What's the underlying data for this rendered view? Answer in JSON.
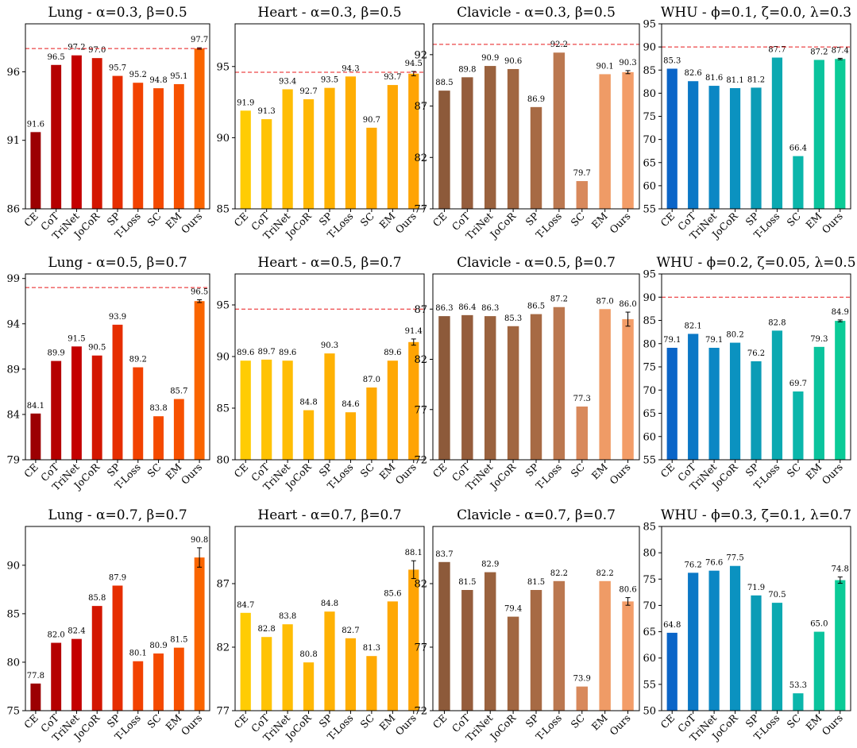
{
  "categories": [
    "CE",
    "CoT",
    "TriNet",
    "JoCoR",
    "SP",
    "T-Loss",
    "SC",
    "EM",
    "Ours"
  ],
  "chart_data": [
    {
      "type": "bar",
      "title": "Lung - α=0.3, β=0.5",
      "ylim": [
        86,
        99.5
      ],
      "yticks": [
        86,
        91,
        96
      ],
      "ref_line": 97.7,
      "values": [
        91.6,
        96.5,
        97.2,
        97.0,
        95.7,
        95.2,
        94.8,
        95.1,
        97.7
      ],
      "labels": [
        "91.6",
        "96.5",
        "97.2",
        "97.0",
        "95.7",
        "95.2",
        "94.8",
        "95.1",
        "97.7"
      ],
      "error": [
        0,
        0,
        0,
        0,
        0,
        0,
        0,
        0,
        0.05
      ],
      "colors": [
        "#9c0002",
        "#b50000",
        "#c40000",
        "#d31600",
        "#e62e00",
        "#f24200",
        "#f44a00",
        "#f75100",
        "#fa6500"
      ]
    },
    {
      "type": "bar",
      "title": "Heart - α=0.3, β=0.5",
      "ylim": [
        85,
        98
      ],
      "yticks": [
        85,
        90,
        95
      ],
      "ref_line": 94.6,
      "values": [
        91.9,
        91.3,
        93.4,
        92.7,
        93.5,
        94.3,
        90.7,
        93.7,
        94.5
      ],
      "labels": [
        "91.9",
        "91.3",
        "93.4",
        "92.7",
        "93.5",
        "94.3",
        "90.7",
        "93.7",
        "94.5"
      ],
      "error": [
        0,
        0,
        0,
        0,
        0,
        0,
        0,
        0,
        0.15
      ],
      "colors": [
        "#ffcc04",
        "#ffc304",
        "#ffbd04",
        "#ffb804",
        "#ffb204",
        "#ffae04",
        "#ffaa04",
        "#ffa804",
        "#ffa404"
      ]
    },
    {
      "type": "bar",
      "title": "Clavicle - α=0.3, β=0.5",
      "ylim": [
        77,
        95
      ],
      "yticks": [
        77,
        82,
        87,
        92
      ],
      "ref_line": 93.0,
      "values": [
        88.5,
        89.8,
        90.9,
        90.6,
        86.9,
        92.2,
        79.7,
        90.1,
        90.3
      ],
      "labels": [
        "88.5",
        "89.8",
        "90.9",
        "90.6",
        "86.9",
        "92.2",
        "79.7",
        "90.1",
        "90.3"
      ],
      "error": [
        0,
        0,
        0,
        0,
        0,
        0,
        0,
        0,
        0.15
      ],
      "colors": [
        "#8d5a3a",
        "#955d3c",
        "#9a623e",
        "#a16641",
        "#a76a44",
        "#bb7850",
        "#d8895c",
        "#ef9b66",
        "#f39d68"
      ]
    },
    {
      "type": "bar",
      "title": "WHU - ϕ=0.1, ζ=0.0, λ=0.3",
      "ylim": [
        55,
        95
      ],
      "yticks": [
        55,
        60,
        65,
        70,
        75,
        80,
        85,
        90,
        95
      ],
      "ref_line": 90,
      "values": [
        85.3,
        82.6,
        81.6,
        81.1,
        81.2,
        87.7,
        66.4,
        87.2,
        87.4
      ],
      "labels": [
        "85.3",
        "82.6",
        "81.6",
        "81.1",
        "81.2",
        "87.7",
        "66.4",
        "87.2",
        "87.4"
      ],
      "error": [
        0,
        0,
        0,
        0,
        0,
        0,
        0,
        0,
        0.15
      ],
      "colors": [
        "#0b65c8",
        "#0b78c6",
        "#0b87c4",
        "#0b92c0",
        "#0b9cb6",
        "#0ba9b1",
        "#0bb6ab",
        "#0bc39d",
        "#0bcb97"
      ]
    },
    {
      "type": "bar",
      "title": "Lung - α=0.5, β=0.7",
      "ylim": [
        79,
        99.5
      ],
      "yticks": [
        79,
        84,
        89,
        94,
        99
      ],
      "ref_line": 98.0,
      "values": [
        84.1,
        89.9,
        91.5,
        90.5,
        93.9,
        89.2,
        83.8,
        85.7,
        96.5
      ],
      "labels": [
        "84.1",
        "89.9",
        "91.5",
        "90.5",
        "93.9",
        "89.2",
        "83.8",
        "85.7",
        "96.5"
      ],
      "error": [
        0,
        0,
        0,
        0,
        0,
        0,
        0,
        0,
        0.15
      ],
      "colors": [
        "#9c0002",
        "#b50000",
        "#c40000",
        "#d31600",
        "#e62e00",
        "#f24200",
        "#f44a00",
        "#f75100",
        "#fa6500"
      ]
    },
    {
      "type": "bar",
      "title": "Heart - α=0.5, β=0.7",
      "ylim": [
        80,
        98
      ],
      "yticks": [
        80,
        85,
        90,
        95
      ],
      "ref_line": 94.6,
      "values": [
        89.6,
        89.7,
        89.6,
        84.8,
        90.3,
        84.6,
        87.0,
        89.6,
        91.4
      ],
      "labels": [
        "89.6",
        "89.7",
        "89.6",
        "84.8",
        "90.3",
        "84.6",
        "87.0",
        "89.6",
        "91.4"
      ],
      "error": [
        0,
        0,
        0,
        0,
        0,
        0,
        0,
        0,
        0.3
      ],
      "colors": [
        "#ffcc04",
        "#ffc304",
        "#ffbd04",
        "#ffb804",
        "#ffb204",
        "#ffae04",
        "#ffaa04",
        "#ffa804",
        "#ffa404"
      ]
    },
    {
      "type": "bar",
      "title": "Clavicle - α=0.5, β=0.7",
      "ylim": [
        72,
        90.5
      ],
      "yticks": [
        72,
        77,
        82,
        87
      ],
      "ref_line": null,
      "values": [
        86.3,
        86.4,
        86.3,
        85.3,
        86.5,
        87.2,
        77.3,
        87.0,
        86.0
      ],
      "labels": [
        "86.3",
        "86.4",
        "86.3",
        "85.3",
        "86.5",
        "87.2",
        "77.3",
        "87.0",
        "86.0"
      ],
      "error": [
        0,
        0,
        0,
        0,
        0,
        0,
        0,
        0,
        0.7
      ],
      "colors": [
        "#8d5a3a",
        "#955d3c",
        "#9a623e",
        "#a16641",
        "#a76a44",
        "#bb7850",
        "#d8895c",
        "#ef9b66",
        "#f39d68"
      ]
    },
    {
      "type": "bar",
      "title": "WHU - ϕ=0.2, ζ=0.05, λ=0.5",
      "ylim": [
        55,
        95
      ],
      "yticks": [
        55,
        60,
        65,
        70,
        75,
        80,
        85,
        90,
        95
      ],
      "ref_line": 90,
      "values": [
        79.1,
        82.1,
        79.1,
        80.2,
        76.2,
        82.8,
        69.7,
        79.3,
        84.9
      ],
      "labels": [
        "79.1",
        "82.1",
        "79.1",
        "80.2",
        "76.2",
        "82.8",
        "69.7",
        "79.3",
        "84.9"
      ],
      "error": [
        0,
        0,
        0,
        0,
        0,
        0,
        0,
        0,
        0.2
      ],
      "colors": [
        "#0b65c8",
        "#0b78c6",
        "#0b87c4",
        "#0b92c0",
        "#0b9cb6",
        "#0ba9b1",
        "#0bb6ab",
        "#0bc39d",
        "#0bcb97"
      ]
    },
    {
      "type": "bar",
      "title": "Lung - α=0.7, β=0.7",
      "ylim": [
        75,
        94
      ],
      "yticks": [
        75,
        80,
        85,
        90
      ],
      "ref_line": null,
      "values": [
        77.8,
        82.0,
        82.4,
        85.8,
        87.9,
        80.1,
        80.9,
        81.5,
        90.8
      ],
      "labels": [
        "77.8",
        "82.0",
        "82.4",
        "85.8",
        "87.9",
        "80.1",
        "80.9",
        "81.5",
        "90.8"
      ],
      "error": [
        0,
        0,
        0,
        0,
        0,
        0,
        0,
        0,
        1.0
      ],
      "colors": [
        "#9c0002",
        "#b50000",
        "#c40000",
        "#d31600",
        "#e62e00",
        "#f24200",
        "#f44a00",
        "#f75100",
        "#fa6500"
      ]
    },
    {
      "type": "bar",
      "title": "Heart - α=0.7, β=0.7",
      "ylim": [
        77,
        91.5
      ],
      "yticks": [
        77,
        82,
        87
      ],
      "ref_line": null,
      "values": [
        84.7,
        82.8,
        83.8,
        80.8,
        84.8,
        82.7,
        81.3,
        85.6,
        88.1
      ],
      "labels": [
        "84.7",
        "82.8",
        "83.8",
        "80.8",
        "84.8",
        "82.7",
        "81.3",
        "85.6",
        "88.1"
      ],
      "error": [
        0,
        0,
        0,
        0,
        0,
        0,
        0,
        0,
        0.7
      ],
      "colors": [
        "#ffcc04",
        "#ffc304",
        "#ffbd04",
        "#ffb804",
        "#ffb204",
        "#ffae04",
        "#ffaa04",
        "#ffa804",
        "#ffa404"
      ]
    },
    {
      "type": "bar",
      "title": "Clavicle - α=0.7, β=0.7",
      "ylim": [
        72,
        86.5
      ],
      "yticks": [
        72,
        77,
        82
      ],
      "ref_line": null,
      "values": [
        83.7,
        81.5,
        82.9,
        79.4,
        81.5,
        82.2,
        73.9,
        82.2,
        80.6
      ],
      "labels": [
        "83.7",
        "81.5",
        "82.9",
        "79.4",
        "81.5",
        "82.2",
        "73.9",
        "82.2",
        "80.6"
      ],
      "error": [
        0,
        0,
        0,
        0,
        0,
        0,
        0,
        0,
        0.3
      ],
      "colors": [
        "#8d5a3a",
        "#955d3c",
        "#9a623e",
        "#a16641",
        "#a76a44",
        "#bb7850",
        "#d8895c",
        "#ef9b66",
        "#f39d68"
      ]
    },
    {
      "type": "bar",
      "title": "WHU - ϕ=0.3, ζ=0.1, λ=0.7",
      "ylim": [
        50,
        85
      ],
      "yticks": [
        50,
        55,
        60,
        65,
        70,
        75,
        80,
        85
      ],
      "ref_line": null,
      "values": [
        64.8,
        76.2,
        76.6,
        77.5,
        71.9,
        70.5,
        53.3,
        65.0,
        74.8
      ],
      "labels": [
        "64.8",
        "76.2",
        "76.6",
        "77.5",
        "71.9",
        "70.5",
        "53.3",
        "65.0",
        "74.8"
      ],
      "error": [
        0,
        0,
        0,
        0,
        0,
        0,
        0,
        0,
        0.6
      ],
      "colors": [
        "#0b65c8",
        "#0b78c6",
        "#0b87c4",
        "#0b92c0",
        "#0b9cb6",
        "#0ba9b1",
        "#0bb6ab",
        "#0bc39d",
        "#0bcb97"
      ]
    }
  ]
}
